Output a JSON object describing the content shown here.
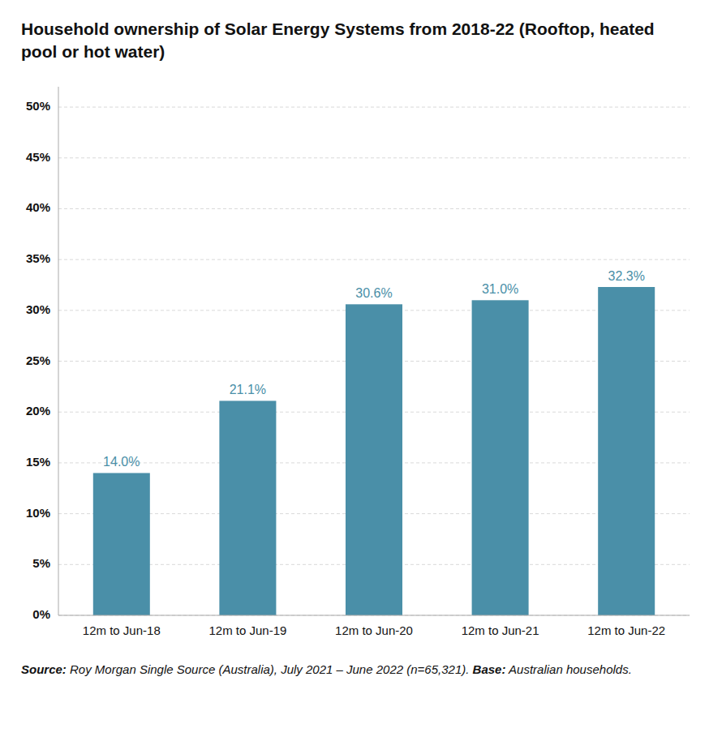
{
  "chart_data": {
    "type": "bar",
    "title": "Household ownership of Solar Energy Systems from 2018-22 (Rooftop, heated pool or hot water)",
    "annotations": [
      "Source:",
      "Roy Morgan Single Source (Australia), July 2021 – June 2022 (n=65,321).",
      "Base:",
      "Australian households."
    ],
    "categories": [
      "12m to Jun-18",
      "12m to Jun-19",
      "12m to Jun-20",
      "12m to Jun-21",
      "12m to Jun-22"
    ],
    "values": [
      14.0,
      21.1,
      30.6,
      31.0,
      32.3
    ],
    "value_labels": [
      "14.0%",
      "21.1%",
      "30.6%",
      "31.0%",
      "32.3%"
    ],
    "data_labels": true,
    "color": "#4a8fa8",
    "ylim": [
      0,
      52
    ],
    "yticks": [
      {
        "value": 0,
        "label": "0%"
      },
      {
        "value": 5,
        "label": "5%"
      },
      {
        "value": 10,
        "label": "10%"
      },
      {
        "value": 15,
        "label": "15%"
      },
      {
        "value": 20,
        "label": "20%"
      },
      {
        "value": 25,
        "label": "25%"
      },
      {
        "value": 30,
        "label": "30%"
      },
      {
        "value": 35,
        "label": "35%"
      },
      {
        "value": 40,
        "label": "40%"
      },
      {
        "value": 45,
        "label": "45%"
      },
      {
        "value": 50,
        "label": "50%"
      }
    ],
    "grid": true
  }
}
